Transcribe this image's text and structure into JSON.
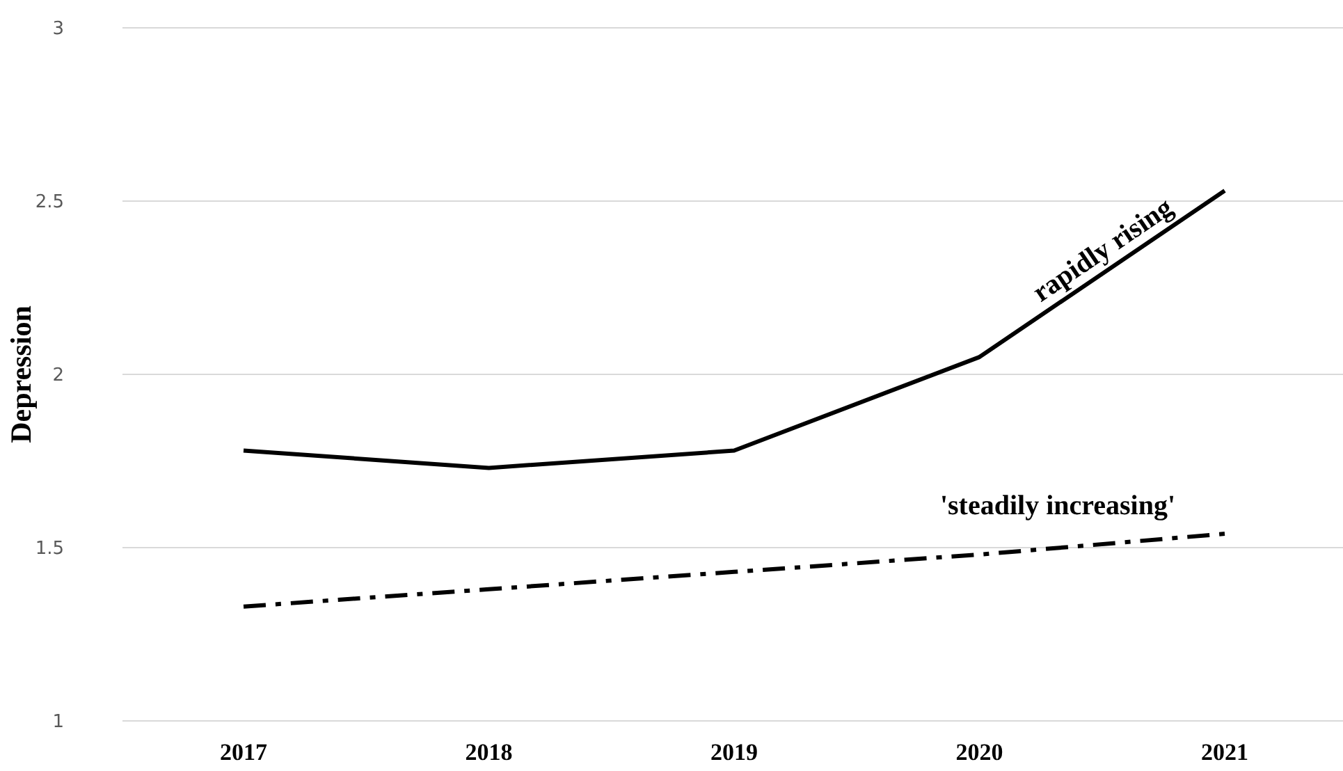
{
  "chart_data": {
    "type": "line",
    "ylabel": "Depression",
    "categories": [
      "2017",
      "2018",
      "2019",
      "2020",
      "2021"
    ],
    "series": [
      {
        "name": "rapidly rising",
        "color": "#000000",
        "values": [
          1.78,
          1.73,
          1.78,
          2.05,
          2.53
        ],
        "line_style": "solid"
      },
      {
        "name": "'steadily increasing'",
        "color": "#000000",
        "values": [
          1.33,
          1.38,
          1.43,
          1.48,
          1.54
        ],
        "line_style": "dashed"
      }
    ],
    "ylim": [
      1,
      3
    ],
    "yticks": [
      1,
      1.5,
      2,
      2.5,
      3
    ],
    "grid": "y",
    "marker": "none"
  }
}
